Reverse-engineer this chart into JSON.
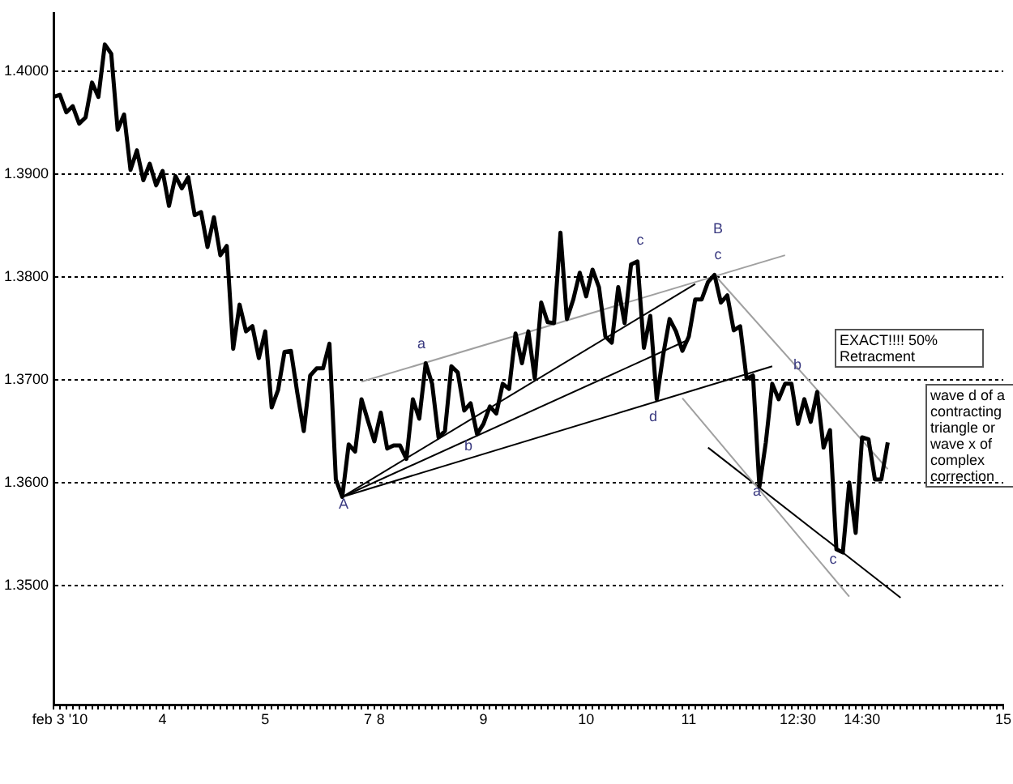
{
  "chart_data": {
    "type": "line",
    "categories": [
      null,
      "feb 3 '10",
      null,
      null,
      null,
      null,
      null,
      null,
      null,
      null,
      null,
      null,
      null,
      null,
      null,
      null,
      null,
      "4",
      null,
      null,
      null,
      null,
      null,
      null,
      null,
      null,
      null,
      null,
      null,
      null,
      null,
      null,
      null,
      "5",
      null,
      null,
      null,
      null,
      null,
      null,
      null,
      null,
      null,
      null,
      null,
      null,
      null,
      null,
      null,
      "7",
      null,
      "8",
      null,
      null,
      null,
      null,
      null,
      null,
      null,
      null,
      null,
      null,
      null,
      null,
      null,
      null,
      null,
      "9",
      null,
      null,
      null,
      null,
      null,
      null,
      null,
      null,
      null,
      null,
      null,
      null,
      null,
      null,
      null,
      "10",
      null,
      null,
      null,
      null,
      null,
      null,
      null,
      null,
      null,
      null,
      null,
      null,
      null,
      null,
      null,
      "11",
      null,
      null,
      null,
      null,
      null,
      null,
      null,
      null,
      null,
      null,
      null,
      null,
      null,
      null,
      null,
      null,
      "12:30",
      null,
      null,
      null,
      null,
      null,
      null,
      null,
      null,
      null,
      "14:30",
      null,
      null,
      null,
      null,
      null,
      null,
      null,
      null,
      null,
      null,
      null,
      null,
      null,
      null,
      null,
      null,
      null,
      null,
      null,
      null,
      null,
      "15"
    ],
    "series": [
      {
        "color": "#000000",
        "values": [
          1.3975,
          1.3977,
          1.396,
          1.3966,
          1.3949,
          1.3955,
          1.3989,
          1.3975,
          1.4026,
          1.4017,
          1.3943,
          1.3958,
          1.3904,
          1.3923,
          1.3894,
          1.391,
          1.3889,
          1.3903,
          1.3869,
          1.3898,
          1.3886,
          1.3897,
          1.386,
          1.3863,
          1.3829,
          1.3858,
          1.3821,
          1.383,
          1.373,
          1.3773,
          1.3747,
          1.3752,
          1.3721,
          1.3747,
          1.3673,
          1.369,
          1.3727,
          1.3728,
          1.3687,
          1.365,
          1.3704,
          1.3711,
          1.3711,
          1.3735,
          1.3603,
          1.3586,
          1.3637,
          1.363,
          1.3681,
          1.366,
          1.364,
          1.3668,
          1.3633,
          1.3636,
          1.3636,
          1.3623,
          1.3681,
          1.3662,
          1.3716,
          1.3696,
          1.3644,
          1.365,
          1.3713,
          1.3707,
          1.367,
          1.3677,
          1.3647,
          1.3657,
          1.3674,
          1.3667,
          1.3696,
          1.3691,
          1.3745,
          1.3716,
          1.3747,
          1.3701,
          1.3775,
          1.3756,
          1.3755,
          1.3843,
          1.3759,
          1.3778,
          1.3804,
          1.3781,
          1.3807,
          1.379,
          1.3742,
          1.3736,
          1.379,
          1.3755,
          1.3812,
          1.3815,
          1.3731,
          1.3762,
          1.3681,
          1.3724,
          1.3759,
          1.3747,
          1.3728,
          1.3742,
          1.3778,
          1.3778,
          1.3795,
          1.3802,
          1.3775,
          1.3782,
          1.3748,
          1.3752,
          1.3701,
          1.3704,
          1.3596,
          1.3639,
          1.3696,
          1.3681,
          1.3696,
          1.3696,
          1.3657,
          1.3681,
          1.3659,
          1.3688,
          1.3634,
          1.3651,
          1.3535,
          1.3532,
          1.36,
          1.3551,
          1.3644,
          1.3642,
          1.3603,
          1.3603,
          1.3639,
          null,
          null,
          null,
          null,
          null,
          null,
          null,
          null,
          null,
          null,
          null,
          null,
          null,
          null,
          null,
          null,
          null,
          null
        ]
      },
      {
        "type": "line",
        "color": "#a0a0a0",
        "values": [
          null,
          null,
          null,
          null,
          null,
          null,
          null,
          null,
          null,
          null,
          null,
          null,
          null,
          null,
          null,
          null,
          null,
          null,
          null,
          null,
          null,
          null,
          null,
          null,
          null,
          null,
          null,
          null,
          null,
          null,
          null,
          null,
          null,
          null,
          null,
          null,
          null,
          null,
          null,
          null,
          null,
          null,
          null,
          null,
          null,
          null,
          null,
          null,
          1.3698,
          null,
          null,
          null,
          null,
          null,
          null,
          null,
          null,
          null,
          null,
          null,
          null,
          null,
          null,
          null,
          null,
          null,
          null,
          null,
          null,
          null,
          null,
          null,
          null,
          null,
          null,
          null,
          null,
          null,
          null,
          null,
          null,
          null,
          null,
          null,
          null,
          null,
          null,
          null,
          null,
          null,
          null,
          null,
          null,
          null,
          null,
          null,
          null,
          null,
          null,
          null,
          null,
          null,
          null,
          null,
          null,
          null,
          null,
          null,
          null,
          null,
          null,
          null,
          null,
          null,
          1.3821,
          null,
          null,
          null,
          null,
          null,
          null,
          null,
          null,
          null,
          null,
          null,
          null,
          null,
          null,
          null,
          null,
          null,
          null,
          null,
          null,
          null,
          null,
          null,
          null,
          null,
          null,
          null,
          null,
          null,
          null,
          null,
          null,
          null,
          null
        ]
      },
      {
        "type": "line",
        "color": "#000000",
        "values": [
          null,
          null,
          null,
          null,
          null,
          null,
          null,
          null,
          null,
          null,
          null,
          null,
          null,
          null,
          null,
          null,
          null,
          null,
          null,
          null,
          null,
          null,
          null,
          null,
          null,
          null,
          null,
          null,
          null,
          null,
          null,
          null,
          null,
          null,
          null,
          null,
          null,
          null,
          null,
          null,
          null,
          null,
          null,
          null,
          null,
          1.3586,
          null,
          null,
          null,
          null,
          null,
          null,
          null,
          null,
          null,
          null,
          null,
          null,
          null,
          null,
          null,
          null,
          null,
          null,
          null,
          null,
          null,
          null,
          null,
          null,
          null,
          null,
          null,
          null,
          null,
          null,
          null,
          null,
          null,
          null,
          null,
          null,
          null,
          null,
          null,
          null,
          null,
          null,
          null,
          null,
          null,
          null,
          null,
          null,
          null,
          null,
          null,
          null,
          null,
          null,
          1.3793,
          null,
          null,
          null,
          null,
          null,
          null,
          null,
          null,
          null,
          null,
          null,
          null,
          null,
          null,
          null,
          null,
          null,
          null,
          null,
          null,
          null,
          null,
          null,
          null,
          null,
          null,
          null,
          null,
          null,
          null,
          null,
          null,
          null,
          null,
          null,
          null,
          null,
          null,
          null,
          null,
          null,
          null,
          null,
          null,
          null,
          null,
          null,
          null
        ]
      },
      {
        "type": "line",
        "color": "#000000",
        "values": [
          null,
          null,
          null,
          null,
          null,
          null,
          null,
          null,
          null,
          null,
          null,
          null,
          null,
          null,
          null,
          null,
          null,
          null,
          null,
          null,
          null,
          null,
          null,
          null,
          null,
          null,
          null,
          null,
          null,
          null,
          null,
          null,
          null,
          null,
          null,
          null,
          null,
          null,
          null,
          null,
          null,
          null,
          null,
          null,
          null,
          1.3586,
          null,
          null,
          null,
          null,
          null,
          null,
          null,
          null,
          null,
          null,
          null,
          null,
          null,
          null,
          null,
          null,
          null,
          null,
          null,
          null,
          null,
          null,
          null,
          null,
          null,
          null,
          null,
          null,
          null,
          null,
          null,
          null,
          null,
          null,
          null,
          null,
          null,
          null,
          null,
          null,
          null,
          null,
          null,
          null,
          null,
          null,
          null,
          null,
          null,
          null,
          null,
          null,
          null,
          1.3739,
          null,
          null,
          null,
          null,
          null,
          null,
          null,
          null,
          null,
          null,
          null,
          null,
          null,
          null,
          null,
          null,
          null,
          null,
          null,
          null,
          null,
          null,
          null,
          null,
          null,
          null,
          null,
          null,
          null,
          null,
          null,
          null,
          null,
          null,
          null,
          null,
          null,
          null,
          null,
          null,
          null,
          null,
          null,
          null,
          null,
          null,
          null,
          null,
          null
        ]
      },
      {
        "type": "line",
        "color": "#000000",
        "values": [
          null,
          null,
          null,
          null,
          null,
          null,
          null,
          null,
          null,
          null,
          null,
          null,
          null,
          null,
          null,
          null,
          null,
          null,
          null,
          null,
          null,
          null,
          null,
          null,
          null,
          null,
          null,
          null,
          null,
          null,
          null,
          null,
          null,
          null,
          null,
          null,
          null,
          null,
          null,
          null,
          null,
          null,
          null,
          null,
          null,
          1.3586,
          null,
          null,
          null,
          null,
          null,
          null,
          null,
          null,
          null,
          null,
          null,
          null,
          null,
          null,
          null,
          null,
          null,
          null,
          null,
          null,
          null,
          null,
          null,
          null,
          null,
          null,
          null,
          null,
          null,
          null,
          null,
          null,
          null,
          null,
          null,
          null,
          null,
          null,
          null,
          null,
          null,
          null,
          null,
          null,
          null,
          null,
          null,
          null,
          null,
          null,
          null,
          null,
          null,
          null,
          null,
          null,
          null,
          null,
          null,
          null,
          null,
          null,
          null,
          null,
          null,
          null,
          1.3713,
          null,
          null,
          null,
          null,
          null,
          null,
          null,
          null,
          null,
          null,
          null,
          null,
          null,
          null,
          null,
          null,
          null,
          null,
          null,
          null,
          null,
          null,
          null,
          null,
          null,
          null,
          null,
          null,
          null,
          null,
          null,
          null,
          null,
          null,
          null,
          null
        ]
      },
      {
        "type": "line",
        "color": "#a0a0a0",
        "values": [
          null,
          null,
          null,
          null,
          null,
          null,
          null,
          null,
          null,
          null,
          null,
          null,
          null,
          null,
          null,
          null,
          null,
          null,
          null,
          null,
          null,
          null,
          null,
          null,
          null,
          null,
          null,
          null,
          null,
          null,
          null,
          null,
          null,
          null,
          null,
          null,
          null,
          null,
          null,
          null,
          null,
          null,
          null,
          null,
          null,
          null,
          null,
          null,
          null,
          null,
          null,
          null,
          null,
          null,
          null,
          null,
          null,
          null,
          null,
          null,
          null,
          null,
          null,
          null,
          null,
          null,
          null,
          null,
          null,
          null,
          null,
          null,
          null,
          null,
          null,
          null,
          null,
          null,
          null,
          null,
          null,
          null,
          null,
          null,
          null,
          null,
          null,
          null,
          null,
          null,
          null,
          null,
          null,
          null,
          null,
          null,
          null,
          null,
          null,
          null,
          null,
          null,
          null,
          1.3802,
          null,
          null,
          null,
          null,
          null,
          null,
          null,
          null,
          null,
          null,
          null,
          null,
          null,
          null,
          null,
          null,
          null,
          null,
          null,
          null,
          null,
          null,
          null,
          null,
          null,
          null,
          1.3613,
          null,
          null,
          null,
          null,
          null,
          null,
          null,
          null,
          null,
          null,
          null,
          null,
          null,
          null,
          null,
          null,
          null,
          null
        ]
      },
      {
        "type": "line",
        "color": "#a0a0a0",
        "values": [
          null,
          null,
          null,
          null,
          null,
          null,
          null,
          null,
          null,
          null,
          null,
          null,
          null,
          null,
          null,
          null,
          null,
          null,
          null,
          null,
          null,
          null,
          null,
          null,
          null,
          null,
          null,
          null,
          null,
          null,
          null,
          null,
          null,
          null,
          null,
          null,
          null,
          null,
          null,
          null,
          null,
          null,
          null,
          null,
          null,
          null,
          null,
          null,
          null,
          null,
          null,
          null,
          null,
          null,
          null,
          null,
          null,
          null,
          null,
          null,
          null,
          null,
          null,
          null,
          null,
          null,
          null,
          null,
          null,
          null,
          null,
          null,
          null,
          null,
          null,
          null,
          null,
          null,
          null,
          null,
          null,
          null,
          null,
          null,
          null,
          null,
          null,
          null,
          null,
          null,
          null,
          null,
          null,
          null,
          null,
          null,
          null,
          null,
          1.3682,
          null,
          null,
          null,
          null,
          null,
          null,
          null,
          null,
          null,
          null,
          null,
          null,
          null,
          null,
          null,
          null,
          null,
          null,
          null,
          null,
          null,
          null,
          null,
          null,
          null,
          1.3489,
          null,
          null,
          null,
          null,
          null,
          null,
          null,
          null,
          null,
          null,
          null,
          null,
          null,
          null,
          null,
          null,
          null,
          null,
          null,
          null,
          null,
          null,
          null,
          null
        ]
      },
      {
        "type": "line",
        "color": "#000000",
        "values": [
          null,
          null,
          null,
          null,
          null,
          null,
          null,
          null,
          null,
          null,
          null,
          null,
          null,
          null,
          null,
          null,
          null,
          null,
          null,
          null,
          null,
          null,
          null,
          null,
          null,
          null,
          null,
          null,
          null,
          null,
          null,
          null,
          null,
          null,
          null,
          null,
          null,
          null,
          null,
          null,
          null,
          null,
          null,
          null,
          null,
          null,
          null,
          null,
          null,
          null,
          null,
          null,
          null,
          null,
          null,
          null,
          null,
          null,
          null,
          null,
          null,
          null,
          null,
          null,
          null,
          null,
          null,
          null,
          null,
          null,
          null,
          null,
          null,
          null,
          null,
          null,
          null,
          null,
          null,
          null,
          null,
          null,
          null,
          null,
          null,
          null,
          null,
          null,
          null,
          null,
          null,
          null,
          null,
          null,
          null,
          null,
          null,
          null,
          null,
          null,
          null,
          null,
          1.3634,
          null,
          null,
          null,
          null,
          null,
          null,
          null,
          null,
          null,
          null,
          null,
          null,
          null,
          null,
          null,
          null,
          null,
          null,
          null,
          null,
          null,
          null,
          null,
          null,
          null,
          null,
          null,
          null,
          null,
          1.3488,
          null,
          null,
          null,
          null,
          null,
          null,
          null,
          null,
          null,
          null,
          null,
          null,
          null,
          null,
          null,
          null
        ]
      }
    ],
    "ylim": [
      1.3384,
      1.4056
    ],
    "yticks": [
      {
        "value": 1.35,
        "label": "1.3500"
      },
      {
        "value": 1.36,
        "label": "1.3600"
      },
      {
        "value": 1.37,
        "label": "1.3700"
      },
      {
        "value": 1.38,
        "label": "1.3800"
      },
      {
        "value": 1.39,
        "label": "1.3900"
      },
      {
        "value": 1.4,
        "label": "1.4000"
      }
    ],
    "grid": "y",
    "legend": false,
    "marker": "none",
    "annotations": [
      "A",
      "a",
      "b",
      "c",
      "d",
      "B",
      "c",
      "a",
      "b",
      "c",
      "EXACT!!!! 50% Retracment",
      "wave d of a contracting triangle or wave x of complex correction"
    ]
  }
}
